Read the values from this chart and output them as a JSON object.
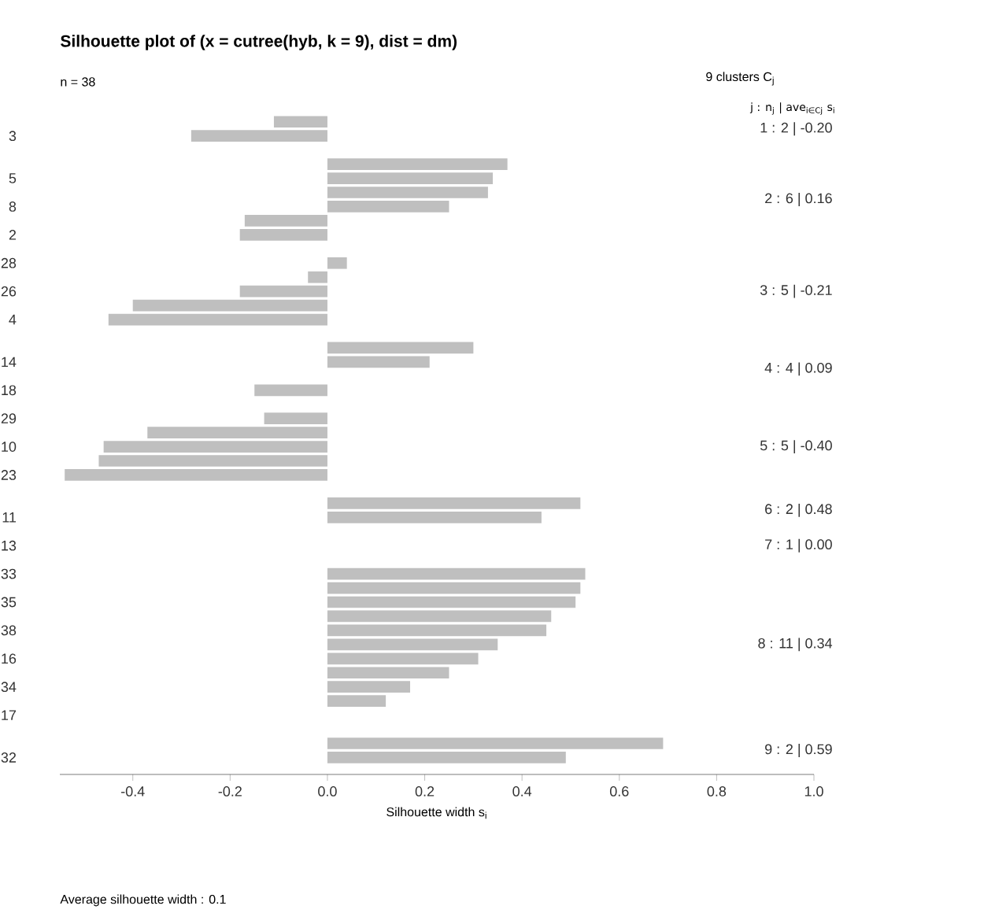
{
  "chart_data": {
    "type": "bar",
    "orientation": "horizontal",
    "title": "Silhouette plot of (x = cutree(hyb, k = 9), dist = dm)",
    "subtitle": "n = 38",
    "xlabel": "Silhouette width s$_{i}$",
    "categories": [
      null,
      "3",
      null,
      null,
      "5",
      null,
      "8",
      null,
      "2",
      null,
      "28",
      null,
      "26",
      null,
      "4",
      null,
      null,
      "14",
      null,
      "18",
      null,
      "29",
      null,
      "10",
      null,
      "23",
      null,
      null,
      "11",
      null,
      "13",
      null,
      "33",
      null,
      "35",
      null,
      "38",
      null,
      "16",
      null,
      "34",
      null,
      "17",
      null,
      null,
      "32"
    ],
    "values": [
      -0.11,
      -0.28,
      null,
      0.37,
      0.34,
      0.33,
      0.25,
      -0.17,
      -0.18,
      null,
      0.04,
      -0.04,
      -0.18,
      -0.4,
      -0.45,
      null,
      0.3,
      0.21,
      0.0,
      -0.15,
      null,
      -0.13,
      -0.37,
      -0.46,
      -0.47,
      -0.54,
      null,
      0.52,
      0.44,
      null,
      0.0,
      null,
      0.53,
      0.52,
      0.51,
      0.46,
      0.45,
      0.35,
      0.31,
      0.25,
      0.17,
      0.12,
      0.0,
      null,
      0.69,
      0.49
    ],
    "color": "#bfbfbf",
    "xlim": [
      -0.55,
      1.0
    ],
    "xticks": [
      -0.4,
      -0.2,
      {
        "value": 0,
        "label": "0.0"
      },
      0.2,
      0.4,
      0.6,
      0.8,
      {
        "value": 1.0,
        "label": "1.0"
      }
    ],
    "annotations": [
      "9  clusters  C$_{j}$",
      "j :  n$_{j}$ | ave$_{i∈Cj}$ s$_{i}$",
      "1 :  2 | -0.20",
      "2 :  6 | 0.16",
      "3 :  5 | -0.21",
      "4 :  4 | 0.09",
      "5 :  5 | -0.40",
      "6 :  2 | 0.48",
      "7 :  1 | 0.00",
      "8 :  11 | 0.34",
      "9 :  2 | 0.59",
      "Average silhouette width :  0.1"
    ]
  }
}
